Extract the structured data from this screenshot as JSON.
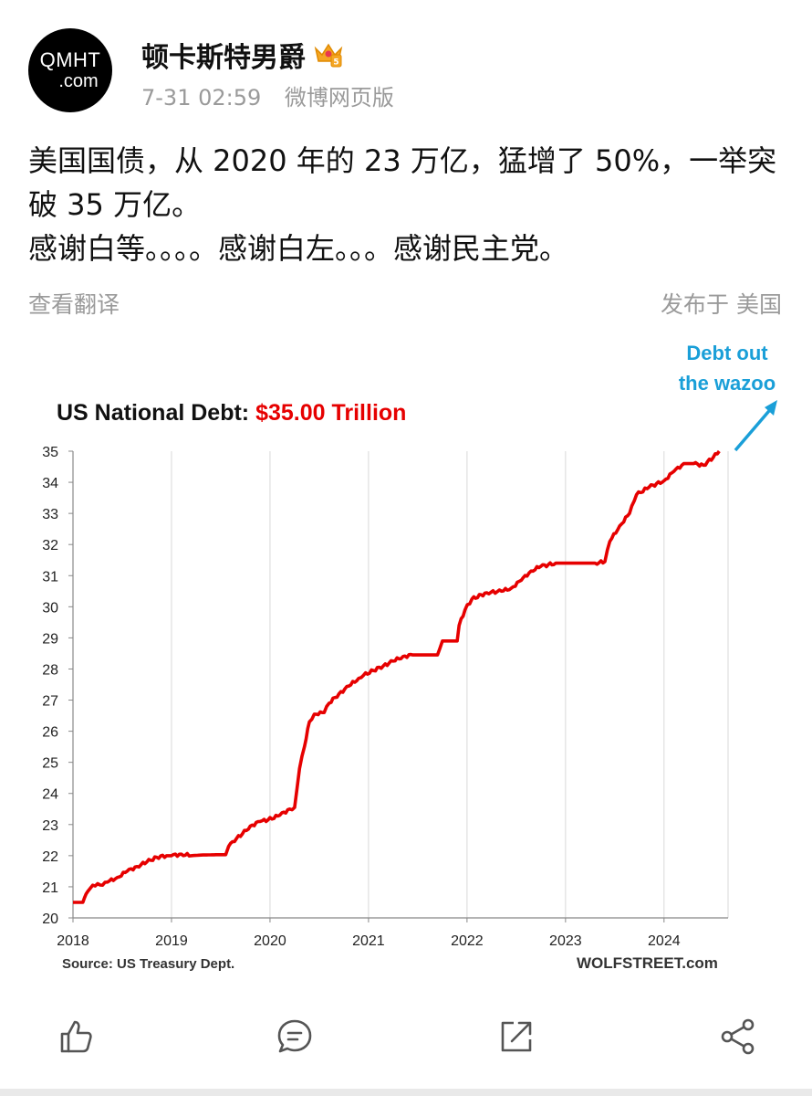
{
  "header": {
    "avatar_line1": "QMHT",
    "avatar_line2": ".com",
    "username": "顿卡斯特男爵",
    "badge_icon": "crown-badge-icon",
    "timestamp": "7-31 02:59",
    "source": "微博网页版"
  },
  "post": {
    "line1": "美国国债，从 2020 年的 23 万亿，猛增了 50%，一举突破 35 万亿。",
    "line2": "感谢白等。。。。感谢白左。。。感谢民主党。",
    "translate_label": "查看翻译",
    "published_label": "发布于 美国"
  },
  "chart_data": {
    "type": "line",
    "title_prefix": "US National Debt: ",
    "title_value": "$35.00 Trillion",
    "annotation": [
      "Debt out",
      "the wazoo"
    ],
    "source": "Source: US Treasury Dept.",
    "watermark": "WOLFSTREET.com",
    "x_tick_labels": [
      "2018",
      "2019",
      "2020",
      "2021",
      "2022",
      "2023",
      "2024"
    ],
    "y_tick_labels": [
      "20",
      "21",
      "22",
      "23",
      "24",
      "25",
      "26",
      "27",
      "28",
      "29",
      "30",
      "31",
      "32",
      "33",
      "34",
      "35"
    ],
    "xlim": [
      2018,
      2024.65
    ],
    "ylim": [
      20,
      35
    ],
    "grid": "vertical",
    "line_color": "#e60000",
    "annotation_color": "#1a9fd8",
    "title_color_value": "#e60000",
    "x": [
      2018.0,
      2018.1,
      2018.15,
      2018.2,
      2018.25,
      2018.3,
      2018.35,
      2018.45,
      2018.55,
      2018.65,
      2018.75,
      2018.85,
      2018.95,
      2019.0,
      2019.1,
      2019.2,
      2019.3,
      2019.45,
      2019.55,
      2019.58,
      2019.62,
      2019.72,
      2019.8,
      2019.9,
      2019.98,
      2020.1,
      2020.2,
      2020.25,
      2020.3,
      2020.35,
      2020.4,
      2020.45,
      2020.55,
      2020.6,
      2020.7,
      2020.8,
      2020.9,
      2020.95,
      2021.05,
      2021.15,
      2021.25,
      2021.35,
      2021.45,
      2021.5,
      2021.6,
      2021.7,
      2021.75,
      2021.8,
      2021.9,
      2021.92,
      2021.98,
      2022.05,
      2022.2,
      2022.35,
      2022.45,
      2022.55,
      2022.65,
      2022.75,
      2022.9,
      2022.98,
      2023.1,
      2023.3,
      2023.4,
      2023.45,
      2023.55,
      2023.65,
      2023.72,
      2023.85,
      2024.0,
      2024.1,
      2024.2,
      2024.3,
      2024.4,
      2024.5,
      2024.56
    ],
    "values": [
      20.5,
      20.5,
      20.85,
      21.05,
      21.1,
      21.05,
      21.15,
      21.3,
      21.5,
      21.65,
      21.8,
      21.95,
      22.0,
      22.0,
      22.05,
      22.0,
      22.02,
      22.03,
      22.03,
      22.3,
      22.45,
      22.7,
      22.95,
      23.1,
      23.15,
      23.3,
      23.5,
      23.55,
      24.8,
      25.5,
      26.3,
      26.55,
      26.6,
      26.9,
      27.2,
      27.45,
      27.7,
      27.8,
      27.95,
      28.1,
      28.25,
      28.4,
      28.45,
      28.45,
      28.45,
      28.45,
      28.9,
      28.9,
      28.9,
      29.4,
      29.9,
      30.25,
      30.45,
      30.5,
      30.6,
      30.85,
      31.15,
      31.3,
      31.4,
      31.4,
      31.4,
      31.4,
      31.45,
      32.1,
      32.6,
      33.0,
      33.6,
      33.85,
      34.05,
      34.35,
      34.6,
      34.6,
      34.55,
      34.8,
      35.0
    ]
  },
  "actions": {
    "like_icon": "thumbs-up-icon",
    "comment_icon": "comment-icon",
    "repost_icon": "repost-icon",
    "share_icon": "share-icon"
  }
}
